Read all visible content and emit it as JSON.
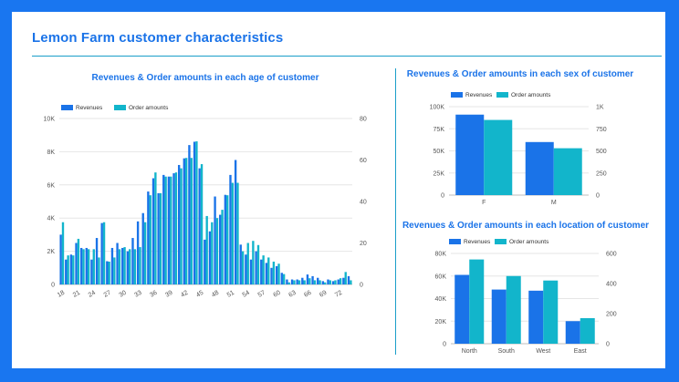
{
  "page": {
    "title": "Lemon Farm customer characteristics"
  },
  "colors": {
    "frame": "#1976f0",
    "revenues": "#1a73e8",
    "orders": "#12b5cb",
    "title": "#1a73e8"
  },
  "chart_data": [
    {
      "type": "bar",
      "title": "Revenues & Order amounts in each age of customer",
      "legend": [
        "Revenues",
        "Order amounts"
      ],
      "legend_position": "top-left",
      "grid": true,
      "x": [
        18,
        19,
        20,
        21,
        22,
        23,
        24,
        25,
        26,
        27,
        28,
        29,
        30,
        31,
        32,
        33,
        34,
        35,
        36,
        37,
        38,
        39,
        40,
        41,
        42,
        43,
        44,
        45,
        46,
        47,
        48,
        49,
        50,
        51,
        52,
        53,
        54,
        55,
        56,
        57,
        58,
        59,
        60,
        61,
        62,
        63,
        64,
        65,
        66,
        67,
        68,
        69,
        70,
        71,
        72,
        73,
        74
      ],
      "x_tick_labels": [
        "18",
        "21",
        "24",
        "27",
        "30",
        "33",
        "36",
        "39",
        "42",
        "45",
        "48",
        "51",
        "54",
        "57",
        "60",
        "63",
        "66",
        "69",
        "72"
      ],
      "y_left_ticks": [
        "0",
        "2K",
        "4K",
        "6K",
        "8K",
        "10K"
      ],
      "y_right_ticks": [
        "0",
        "20",
        "40",
        "60",
        "80"
      ],
      "ylim_left": [
        0,
        10000
      ],
      "ylim_right": [
        0,
        80
      ],
      "series": [
        {
          "name": "Revenues",
          "axis": "left",
          "values": [
            3000,
            1500,
            1800,
            2500,
            2200,
            2200,
            1500,
            2800,
            3700,
            1400,
            2200,
            2500,
            2200,
            2000,
            2800,
            3800,
            4300,
            5600,
            6400,
            5500,
            6600,
            6500,
            6700,
            7200,
            7600,
            8400,
            8600,
            7000,
            2700,
            3200,
            5300,
            4200,
            5400,
            6600,
            7500,
            2400,
            1800,
            1500,
            2000,
            1500,
            1300,
            1000,
            1100,
            700,
            300,
            300,
            300,
            400,
            600,
            500,
            400,
            200,
            300,
            200,
            300,
            400,
            500
          ]
        },
        {
          "name": "Order amounts",
          "axis": "right",
          "values": [
            30,
            14,
            14,
            22,
            17,
            17,
            17,
            13,
            30,
            11,
            13,
            17,
            18,
            17,
            17,
            18,
            30,
            43,
            54,
            44,
            52,
            52,
            54,
            56,
            61,
            61,
            69,
            58,
            33,
            30,
            32,
            36,
            43,
            49,
            49,
            16,
            20,
            21,
            19,
            14,
            13,
            11,
            10,
            5,
            1,
            2,
            2,
            2,
            3,
            2,
            2,
            1,
            2,
            2,
            3,
            6,
            2
          ]
        }
      ]
    },
    {
      "type": "bar",
      "title": "Revenues & Order amounts in each sex of customer",
      "legend": [
        "Revenues",
        "Order amounts"
      ],
      "legend_position": "top",
      "grid": true,
      "categories": [
        "F",
        "M"
      ],
      "y_left_ticks": [
        "0",
        "25K",
        "50K",
        "75K",
        "100K"
      ],
      "y_right_ticks": [
        "0",
        "250",
        "500",
        "750",
        "1K"
      ],
      "ylim_left": [
        0,
        100000
      ],
      "ylim_right": [
        0,
        1000
      ],
      "series": [
        {
          "name": "Revenues",
          "axis": "left",
          "values": [
            91000,
            60000
          ]
        },
        {
          "name": "Order amounts",
          "axis": "right",
          "values": [
            850,
            530
          ]
        }
      ]
    },
    {
      "type": "bar",
      "title": "Revenues & Order amounts in each location of customer",
      "legend": [
        "Revenues",
        "Order amounts"
      ],
      "legend_position": "top",
      "grid": true,
      "categories": [
        "North",
        "South",
        "West",
        "East"
      ],
      "y_left_ticks": [
        "0",
        "20K",
        "40K",
        "60K",
        "80K"
      ],
      "y_right_ticks": [
        "0",
        "200",
        "400",
        "600"
      ],
      "ylim_left": [
        0,
        80000
      ],
      "ylim_right": [
        0,
        600
      ],
      "series": [
        {
          "name": "Revenues",
          "axis": "left",
          "values": [
            61000,
            48000,
            47000,
            20000
          ]
        },
        {
          "name": "Order amounts",
          "axis": "right",
          "values": [
            560,
            450,
            420,
            170
          ]
        }
      ]
    }
  ]
}
